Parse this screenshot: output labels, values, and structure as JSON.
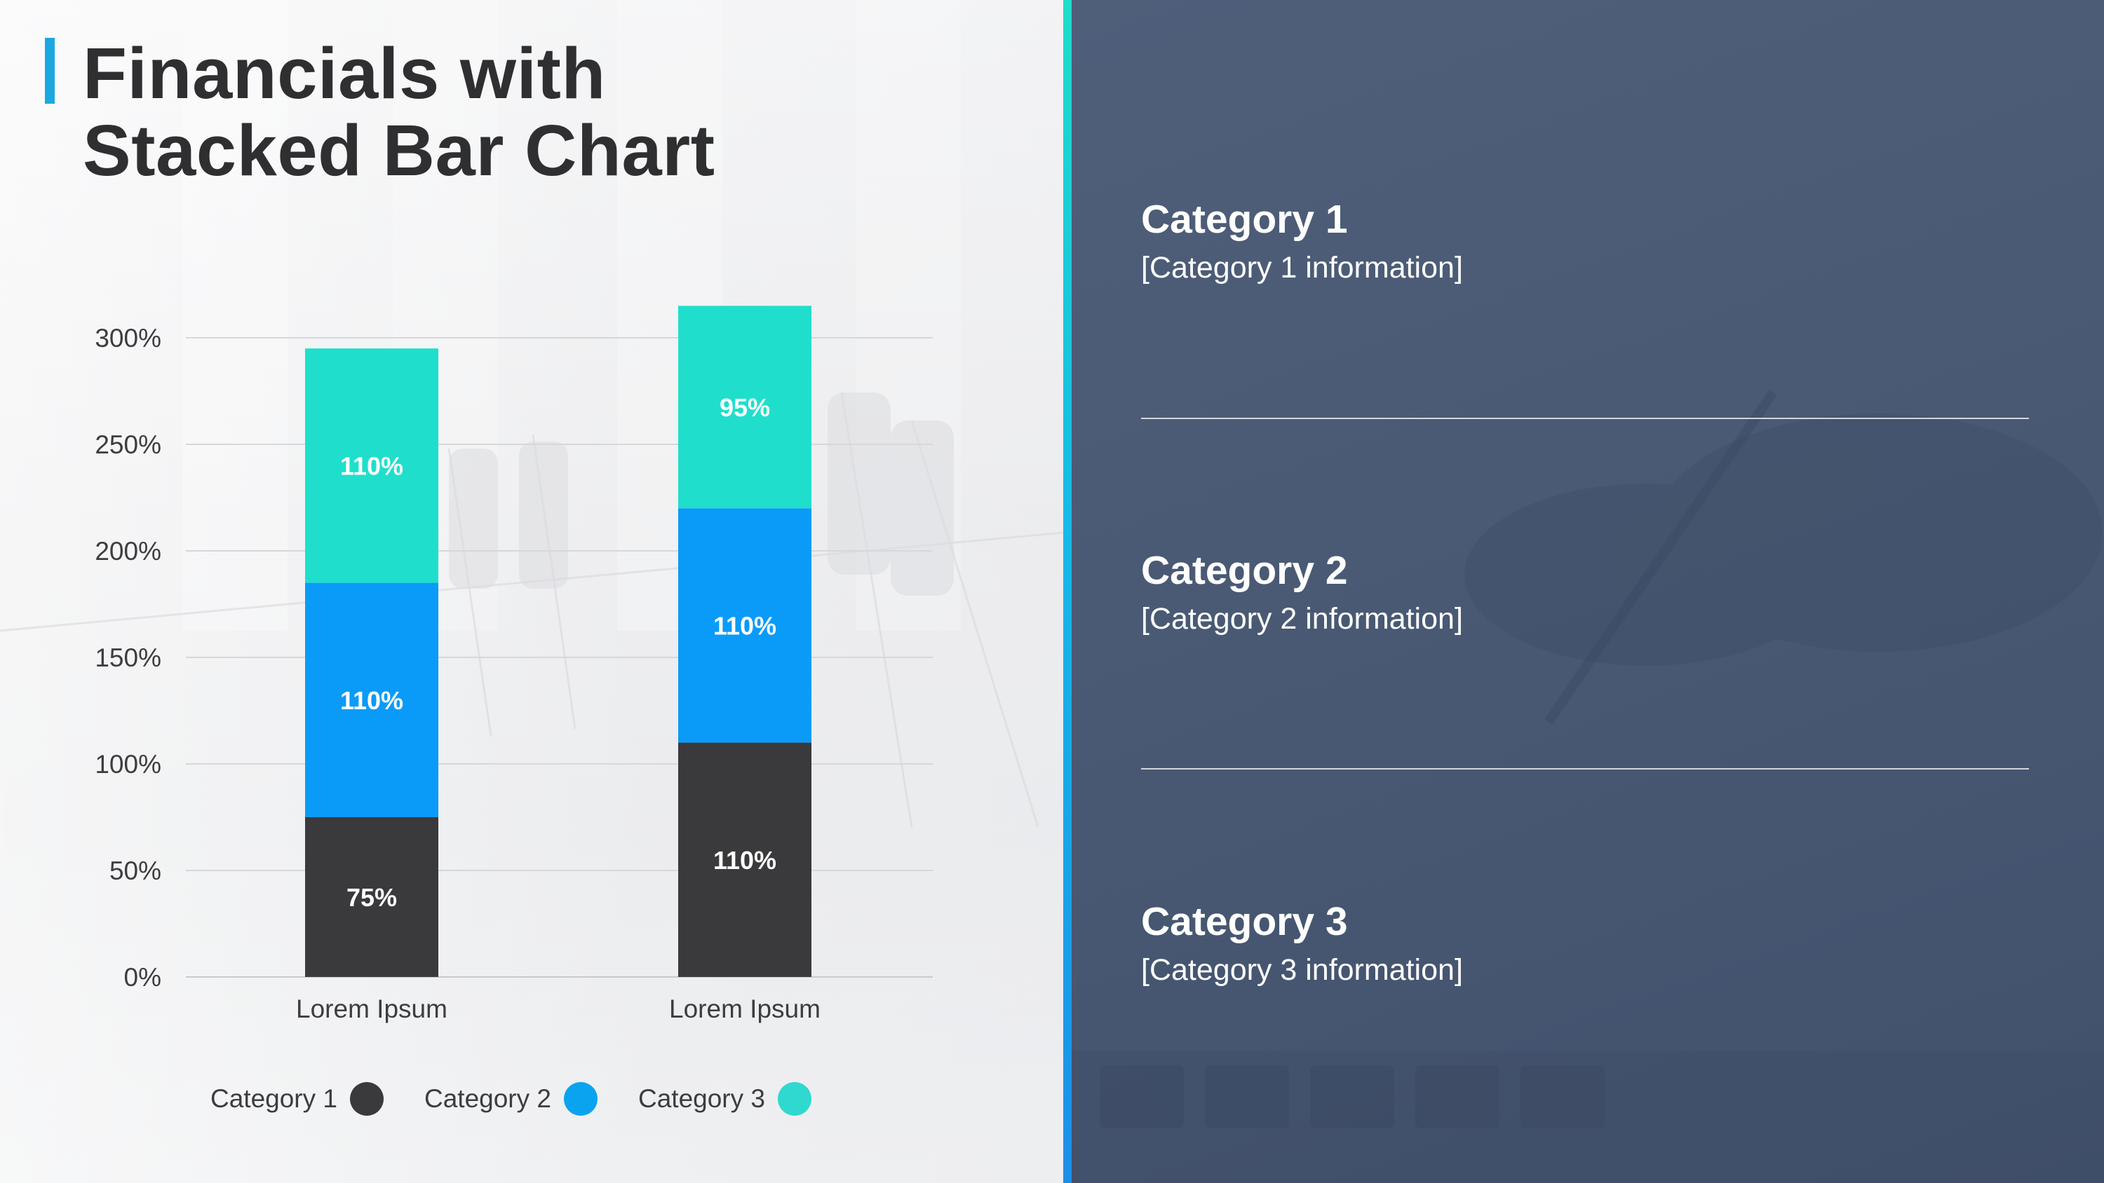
{
  "slide": {
    "title_line1": "Financials with",
    "title_line2": "Stacked Bar Chart",
    "accent_color": "#1ba8e0"
  },
  "chart_data": {
    "type": "bar",
    "stacked": true,
    "categories": [
      "Lorem Ipsum",
      "Lorem Ipsum"
    ],
    "series": [
      {
        "name": "Category 1",
        "values": [
          75,
          110
        ],
        "labels": [
          "75%",
          "110%"
        ],
        "color": "#3a393b"
      },
      {
        "name": "Category 2",
        "values": [
          110,
          110
        ],
        "labels": [
          "110%",
          "110%"
        ],
        "color": "#0a9bf8"
      },
      {
        "name": "Category 3",
        "values": [
          110,
          95
        ],
        "labels": [
          "110%",
          "95%"
        ],
        "color": "#1fdfcc"
      }
    ],
    "yticks": [
      "0%",
      "50%",
      "100%",
      "150%",
      "200%",
      "250%",
      "300%"
    ],
    "ylim": [
      0,
      300
    ],
    "grid": true,
    "legend_position": "bottom"
  },
  "legend": {
    "items": [
      {
        "label": "Category 1",
        "color": "#3a393b"
      },
      {
        "label": "Category 2",
        "color": "#0aa3f0"
      },
      {
        "label": "Category 3",
        "color": "#2fd9cf"
      }
    ]
  },
  "info_panel": {
    "items": [
      {
        "title": "Category 1",
        "info": "[Category 1 information]"
      },
      {
        "title": "Category 2",
        "info": "[Category 2 information]"
      },
      {
        "title": "Category 3",
        "info": "[Category 3 information]"
      }
    ]
  }
}
